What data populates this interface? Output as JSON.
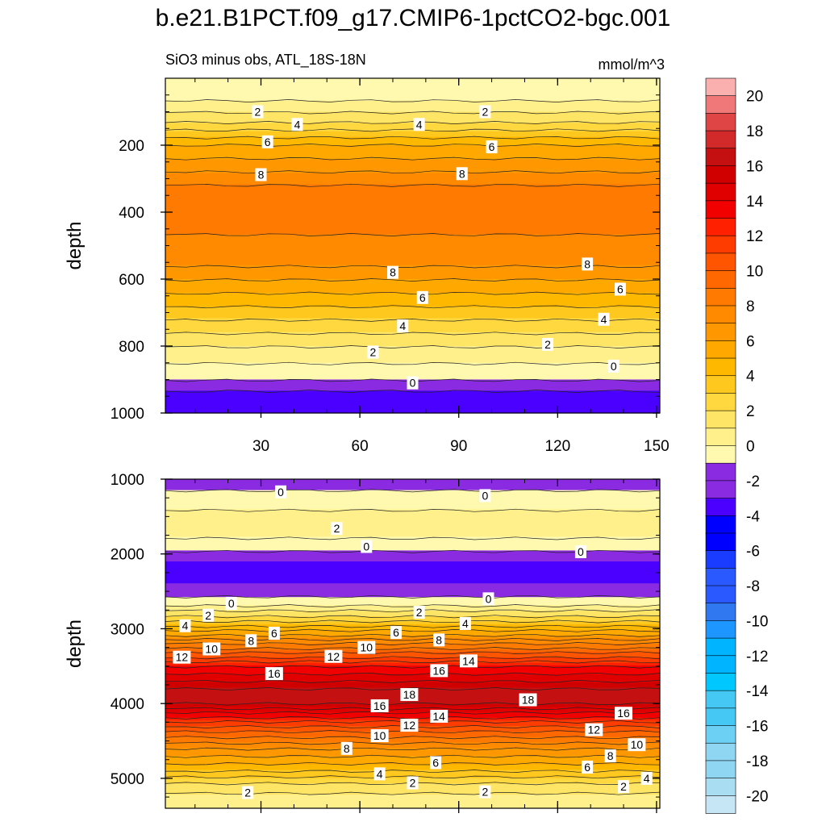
{
  "title": "b.e21.B1PCT.f09_g17.CMIP6-1pctCO2-bgc.001",
  "subtitle": "SiO3 minus obs, ATL_18S-18N",
  "units": "mmol/m^3",
  "colors": {
    "negative": [
      "#8a2be2",
      "#4b00ff",
      "#0000ff",
      "#1a3cff",
      "#2a5aff",
      "#2f78f0",
      "#1e96ff",
      "#00b4ff",
      "#00c8ff",
      "#46c8f5",
      "#6cd0f5",
      "#8ed6f2",
      "#a9def2",
      "#c6e6f5"
    ],
    "positive": [
      "#fff9b0",
      "#fff08c",
      "#ffe566",
      "#ffd840",
      "#ffc81e",
      "#ffb800",
      "#ffa800",
      "#ff9800",
      "#ff8a00",
      "#ff7a00",
      "#ff6800",
      "#ff5500",
      "#ff3c00",
      "#ff2000",
      "#f20000",
      "#e00000",
      "#d00000",
      "#c41010",
      "#d22a2a",
      "#e04545",
      "#f07878",
      "#fbb0b0"
    ]
  },
  "chart_data": [
    {
      "type": "contour",
      "panel": "upper",
      "x": {
        "ticks": [
          30,
          60,
          90,
          120,
          150
        ],
        "range": [
          1,
          151
        ]
      },
      "y": {
        "label": "depth",
        "ticks": [
          200,
          400,
          600,
          800,
          1000
        ],
        "range": [
          0,
          1000
        ],
        "inverted": true
      },
      "field_profile": [
        {
          "depth": 0,
          "value": 0.5
        },
        {
          "depth": 50,
          "value": 0.5
        },
        {
          "depth": 120,
          "value": 2.5
        },
        {
          "depth": 200,
          "value": 6
        },
        {
          "depth": 320,
          "value": 9
        },
        {
          "depth": 420,
          "value": 9.5
        },
        {
          "depth": 560,
          "value": 8
        },
        {
          "depth": 680,
          "value": 5
        },
        {
          "depth": 800,
          "value": 2
        },
        {
          "depth": 900,
          "value": 0
        },
        {
          "depth": 950,
          "value": -1.5
        },
        {
          "depth": 1000,
          "value": -2
        }
      ],
      "contour_labels": [
        {
          "x": 29,
          "depth": 100,
          "text": "2"
        },
        {
          "x": 41,
          "depth": 138,
          "text": "4"
        },
        {
          "x": 78,
          "depth": 138,
          "text": "4"
        },
        {
          "x": 98,
          "depth": 100,
          "text": "2"
        },
        {
          "x": 32,
          "depth": 190,
          "text": "6"
        },
        {
          "x": 100,
          "depth": 205,
          "text": "6"
        },
        {
          "x": 30,
          "depth": 288,
          "text": "8"
        },
        {
          "x": 91,
          "depth": 285,
          "text": "8"
        },
        {
          "x": 70,
          "depth": 580,
          "text": "8"
        },
        {
          "x": 129,
          "depth": 555,
          "text": "8"
        },
        {
          "x": 79,
          "depth": 655,
          "text": "6"
        },
        {
          "x": 139,
          "depth": 630,
          "text": "6"
        },
        {
          "x": 73,
          "depth": 740,
          "text": "4"
        },
        {
          "x": 134,
          "depth": 720,
          "text": "4"
        },
        {
          "x": 64,
          "depth": 818,
          "text": "2"
        },
        {
          "x": 117,
          "depth": 795,
          "text": "2"
        },
        {
          "x": 76,
          "depth": 910,
          "text": "0"
        },
        {
          "x": 137,
          "depth": 860,
          "text": "0"
        }
      ]
    },
    {
      "type": "contour",
      "panel": "lower",
      "x": {
        "ticks": [
          30,
          60,
          90,
          120,
          150
        ],
        "range": [
          1,
          151
        ]
      },
      "y": {
        "label": "depth",
        "ticks": [
          1000,
          2000,
          3000,
          4000,
          5000
        ],
        "range": [
          1000,
          5400
        ],
        "inverted": true
      },
      "field_profile": [
        {
          "depth": 1000,
          "value": -0.5
        },
        {
          "depth": 1300,
          "value": 0.5
        },
        {
          "depth": 1600,
          "value": 1.8
        },
        {
          "depth": 1900,
          "value": 0.5
        },
        {
          "depth": 2100,
          "value": -1
        },
        {
          "depth": 2400,
          "value": -1
        },
        {
          "depth": 2650,
          "value": 0.5
        },
        {
          "depth": 2900,
          "value": 4
        },
        {
          "depth": 3200,
          "value": 9
        },
        {
          "depth": 3500,
          "value": 14
        },
        {
          "depth": 3800,
          "value": 17
        },
        {
          "depth": 4000,
          "value": 17
        },
        {
          "depth": 4300,
          "value": 12
        },
        {
          "depth": 4600,
          "value": 8
        },
        {
          "depth": 4900,
          "value": 5
        },
        {
          "depth": 5100,
          "value": 2.5
        },
        {
          "depth": 5400,
          "value": 1
        }
      ],
      "contour_labels": [
        {
          "x": 36,
          "depth": 1170,
          "text": "0"
        },
        {
          "x": 98,
          "depth": 1220,
          "text": "0"
        },
        {
          "x": 53,
          "depth": 1660,
          "text": "2"
        },
        {
          "x": 62,
          "depth": 1900,
          "text": "0"
        },
        {
          "x": 127,
          "depth": 1970,
          "text": "0"
        },
        {
          "x": 21,
          "depth": 2660,
          "text": "0"
        },
        {
          "x": 99,
          "depth": 2600,
          "text": "0"
        },
        {
          "x": 14,
          "depth": 2820,
          "text": "2"
        },
        {
          "x": 78,
          "depth": 2780,
          "text": "2"
        },
        {
          "x": 7,
          "depth": 2960,
          "text": "4"
        },
        {
          "x": 92,
          "depth": 2930,
          "text": "4"
        },
        {
          "x": 27,
          "depth": 3160,
          "text": "8"
        },
        {
          "x": 34,
          "depth": 3060,
          "text": "6"
        },
        {
          "x": 71,
          "depth": 3050,
          "text": "6"
        },
        {
          "x": 84,
          "depth": 3150,
          "text": "8"
        },
        {
          "x": 15,
          "depth": 3270,
          "text": "10"
        },
        {
          "x": 62,
          "depth": 3250,
          "text": "10"
        },
        {
          "x": 6,
          "depth": 3380,
          "text": "12"
        },
        {
          "x": 52,
          "depth": 3370,
          "text": "12"
        },
        {
          "x": 34,
          "depth": 3600,
          "text": "16"
        },
        {
          "x": 84,
          "depth": 3560,
          "text": "16"
        },
        {
          "x": 93,
          "depth": 3430,
          "text": "14"
        },
        {
          "x": 75,
          "depth": 3880,
          "text": "18"
        },
        {
          "x": 111,
          "depth": 3950,
          "text": "18"
        },
        {
          "x": 66,
          "depth": 4030,
          "text": "16"
        },
        {
          "x": 84,
          "depth": 4170,
          "text": "14"
        },
        {
          "x": 140,
          "depth": 4130,
          "text": "16"
        },
        {
          "x": 75,
          "depth": 4290,
          "text": "12"
        },
        {
          "x": 66,
          "depth": 4430,
          "text": "10"
        },
        {
          "x": 131,
          "depth": 4350,
          "text": "12"
        },
        {
          "x": 144,
          "depth": 4550,
          "text": "10"
        },
        {
          "x": 56,
          "depth": 4600,
          "text": "8"
        },
        {
          "x": 136,
          "depth": 4700,
          "text": "8"
        },
        {
          "x": 83,
          "depth": 4790,
          "text": "6"
        },
        {
          "x": 129,
          "depth": 4850,
          "text": "6"
        },
        {
          "x": 66,
          "depth": 4940,
          "text": "4"
        },
        {
          "x": 147,
          "depth": 5000,
          "text": "4"
        },
        {
          "x": 76,
          "depth": 5060,
          "text": "2"
        },
        {
          "x": 140,
          "depth": 5110,
          "text": "2"
        },
        {
          "x": 26,
          "depth": 5190,
          "text": "2"
        },
        {
          "x": 98,
          "depth": 5180,
          "text": "2"
        }
      ]
    }
  ],
  "colorbar": {
    "labels": [
      "20",
      "18",
      "16",
      "14",
      "12",
      "10",
      "8",
      "6",
      "4",
      "2",
      "0",
      "-2",
      "-4",
      "-6",
      "-8",
      "-10",
      "-12",
      "-14",
      "-16",
      "-18",
      "-20"
    ],
    "range": [
      -20,
      20
    ]
  }
}
